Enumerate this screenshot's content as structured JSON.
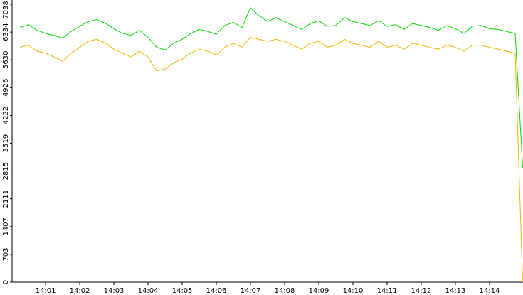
{
  "chart_data": {
    "type": "line",
    "x": [
      0.25,
      0.5,
      0.75,
      1,
      1.25,
      1.5,
      1.75,
      2,
      2.25,
      2.5,
      2.75,
      3,
      3.25,
      3.5,
      3.75,
      4,
      4.25,
      4.5,
      4.75,
      5,
      5.25,
      5.5,
      5.75,
      6,
      6.25,
      6.5,
      6.75,
      7,
      7.25,
      7.5,
      7.75,
      8,
      8.25,
      8.5,
      8.75,
      9,
      9.25,
      9.5,
      9.75,
      10,
      10.25,
      10.5,
      10.75,
      11,
      11.25,
      11.5,
      11.75,
      12,
      12.25,
      12.5,
      12.75,
      13,
      13.25,
      13.5,
      13.75,
      14,
      14.25,
      14.5,
      14.75,
      14.97
    ],
    "series": [
      {
        "color": "#00dd00",
        "values": [
          6450,
          6520,
          6380,
          6300,
          6250,
          6180,
          6350,
          6480,
          6600,
          6650,
          6560,
          6420,
          6300,
          6250,
          6380,
          6200,
          5950,
          5880,
          6050,
          6150,
          6300,
          6400,
          6350,
          6280,
          6500,
          6580,
          6450,
          6950,
          6750,
          6600,
          6700,
          6600,
          6500,
          6400,
          6550,
          6620,
          6480,
          6500,
          6700,
          6600,
          6550,
          6500,
          6620,
          6480,
          6520,
          6400,
          6550,
          6500,
          6450,
          6380,
          6500,
          6420,
          6300,
          6480,
          6500,
          6420,
          6400,
          6350,
          6300,
          2900
        ]
      },
      {
        "color": "#f0b400",
        "values": [
          5950,
          6000,
          5850,
          5800,
          5700,
          5600,
          5800,
          5950,
          6100,
          6150,
          6050,
          5900,
          5800,
          5700,
          5850,
          5700,
          5350,
          5400,
          5550,
          5650,
          5800,
          5900,
          5850,
          5750,
          5950,
          6050,
          5950,
          6200,
          6150,
          6100,
          6150,
          6100,
          6000,
          5900,
          6050,
          6100,
          5950,
          6000,
          6150,
          6050,
          6000,
          5950,
          6100,
          5950,
          6000,
          5900,
          6050,
          6000,
          5950,
          5900,
          6000,
          5950,
          5850,
          6000,
          6000,
          5950,
          5900,
          5850,
          5800,
          0
        ]
      }
    ],
    "xlim": [
      0.02,
      14.98
    ],
    "ylim": [
      0,
      7038
    ],
    "yticks": [
      0,
      703,
      1407,
      2111,
      2815,
      3519,
      4222,
      4926,
      5630,
      6334,
      7038
    ],
    "xticks": [
      {
        "value": 1,
        "label": "14:01"
      },
      {
        "value": 2,
        "label": "14:02"
      },
      {
        "value": 3,
        "label": "14:03"
      },
      {
        "value": 4,
        "label": "14:04"
      },
      {
        "value": 5,
        "label": "14:05"
      },
      {
        "value": 6,
        "label": "14:06"
      },
      {
        "value": 7,
        "label": "14:07"
      },
      {
        "value": 8,
        "label": "14:08"
      },
      {
        "value": 9,
        "label": "14:09"
      },
      {
        "value": 10,
        "label": "14:10"
      },
      {
        "value": 11,
        "label": "14:11"
      },
      {
        "value": 12,
        "label": "14:12"
      },
      {
        "value": 13,
        "label": "14:13"
      },
      {
        "value": 14,
        "label": "14:14"
      }
    ]
  }
}
